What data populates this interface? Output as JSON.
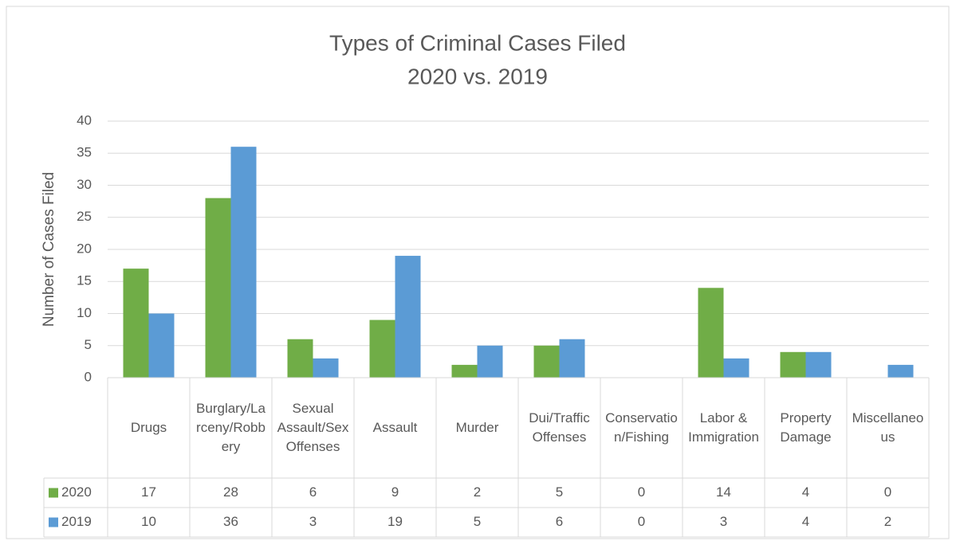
{
  "chart_data": {
    "type": "bar",
    "title": "Types of Criminal Cases Filed",
    "subtitle": "2020 vs. 2019",
    "y_label": "Number of Cases Filed",
    "categories": [
      "Drugs",
      "Burglary/Larceny/Robbery",
      "Sexual Assault/Sex Offenses",
      "Assault",
      "Murder",
      "Dui/Traffic Offenses",
      "Conservation/Fishing",
      "Labor & Immigration",
      "Property Damage",
      "Miscellaneous"
    ],
    "series": [
      {
        "name": "2020",
        "color": "#70ad47",
        "values": [
          17,
          28,
          6,
          9,
          2,
          5,
          0,
          14,
          4,
          0
        ]
      },
      {
        "name": "2019",
        "color": "#5b9bd5",
        "values": [
          10,
          36,
          3,
          19,
          5,
          6,
          0,
          3,
          4,
          2
        ]
      }
    ],
    "ylim": [
      0,
      40
    ],
    "yticks": [
      0,
      5,
      10,
      15,
      20,
      25,
      30,
      35,
      40
    ],
    "grid": true,
    "data_table": true
  }
}
